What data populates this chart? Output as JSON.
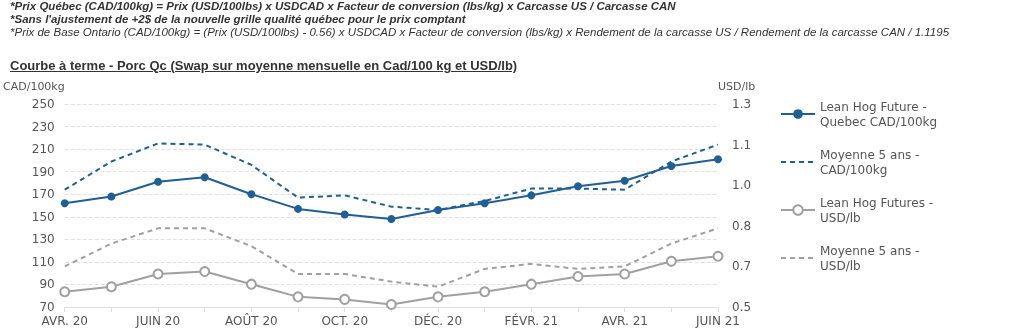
{
  "chart_data": {
    "type": "line",
    "title": "Courbe à terme - Porc Qc (Swap sur moyenne mensuelle en Cad/100 kg et USD/lb)",
    "annotations": [
      "*Prix Québec (CAD/100kg) = Prix (USD/100lbs) x USDCAD x Facteur de conversion (lbs/kg) x Carcasse US / Carcasse CAN",
      "*Sans l'ajustement de +2$ de la nouvelle grille qualité québec pour le prix comptant",
      "*Prix de Base Ontario (CAD/100kg) = (Prix (USD/100lbs) - 0.56) x USDCAD x Facteur de conversion (lbs/kg) x Rendement de la carcasse US / Rendement de la carcasse CAN / 1.1195"
    ],
    "ylabel": "CAD/100kg",
    "y2label": "USD/lb",
    "categories": [
      "AVR. 20",
      null,
      "JUIN 20",
      null,
      "AOÛT 20",
      null,
      "OCT. 20",
      null,
      "DÉC. 20",
      null,
      "FÉVR. 21",
      null,
      "AVR. 21",
      null,
      "JUIN 21"
    ],
    "series": [
      {
        "name": "Lean Hog Future - Quebec CAD/100kg",
        "color": "#1f5f95",
        "marker": "circle",
        "line_style": "solid",
        "values": [
          162,
          168,
          181,
          185,
          170,
          157,
          152,
          148,
          156,
          162,
          169,
          177,
          182,
          195,
          201
        ]
      },
      {
        "name": "Moyenne 5 ans - CAD/100kg",
        "color": "#1f5f95",
        "marker": "none",
        "line_style": "dashed",
        "values": [
          174,
          199,
          215,
          214,
          196,
          167,
          169,
          159,
          156,
          164,
          175,
          175,
          174,
          199,
          214
        ]
      },
      {
        "name": "Lean Hog Futures - USD/lb",
        "color": "#a0a0a0",
        "marker": "circle",
        "line_style": "solid",
        "axis": "y2",
        "values": [
          0.56,
          0.58,
          0.63,
          0.64,
          0.59,
          0.54,
          0.53,
          0.51,
          0.54,
          0.56,
          0.59,
          0.62,
          0.63,
          0.68,
          0.7
        ]
      },
      {
        "name": "Moyenne 5 ans - USD/lb",
        "color": "#a0a0a0",
        "marker": "none",
        "line_style": "dashed",
        "axis": "y2",
        "values": [
          0.66,
          0.75,
          0.81,
          0.81,
          0.74,
          0.63,
          0.63,
          0.6,
          0.58,
          0.65,
          0.67,
          0.65,
          0.66,
          0.75,
          0.81
        ]
      }
    ],
    "ylim": [
      70,
      250
    ],
    "yticks": [
      70,
      90,
      110,
      130,
      150,
      170,
      190,
      210,
      230,
      250
    ],
    "y2lim": [
      0.5,
      1.3
    ],
    "y2ticks": [
      0.5,
      {
        "value": 0.66,
        "label": "0.7"
      },
      {
        "value": 0.82,
        "label": "0.8"
      },
      {
        "value": 0.98,
        "label": "1.0"
      },
      {
        "value": 1.14,
        "label": "1.1"
      },
      1.3
    ],
    "grid": "y",
    "legend": "right"
  }
}
